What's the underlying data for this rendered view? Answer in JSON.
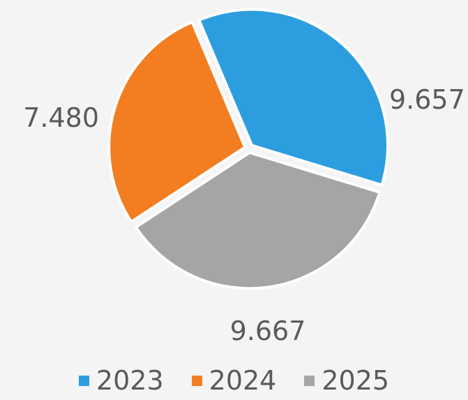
{
  "chart_data": {
    "type": "pie",
    "categories": [
      "2023",
      "2024",
      "2025"
    ],
    "values": [
      9667,
      7480,
      9657
    ],
    "value_labels": [
      "9.667",
      "7.480",
      "9.657"
    ],
    "colors": [
      "#2c9ee0",
      "#f37d21",
      "#a5a5a5"
    ],
    "legend_position": "bottom",
    "start_angle_deg": -17,
    "direction": "counterclockwise-from-3oclock"
  },
  "legend": {
    "items": [
      {
        "label": "2023",
        "color": "#2c9ee0"
      },
      {
        "label": "2024",
        "color": "#f37d21"
      },
      {
        "label": "2025",
        "color": "#a5a5a5"
      }
    ]
  }
}
